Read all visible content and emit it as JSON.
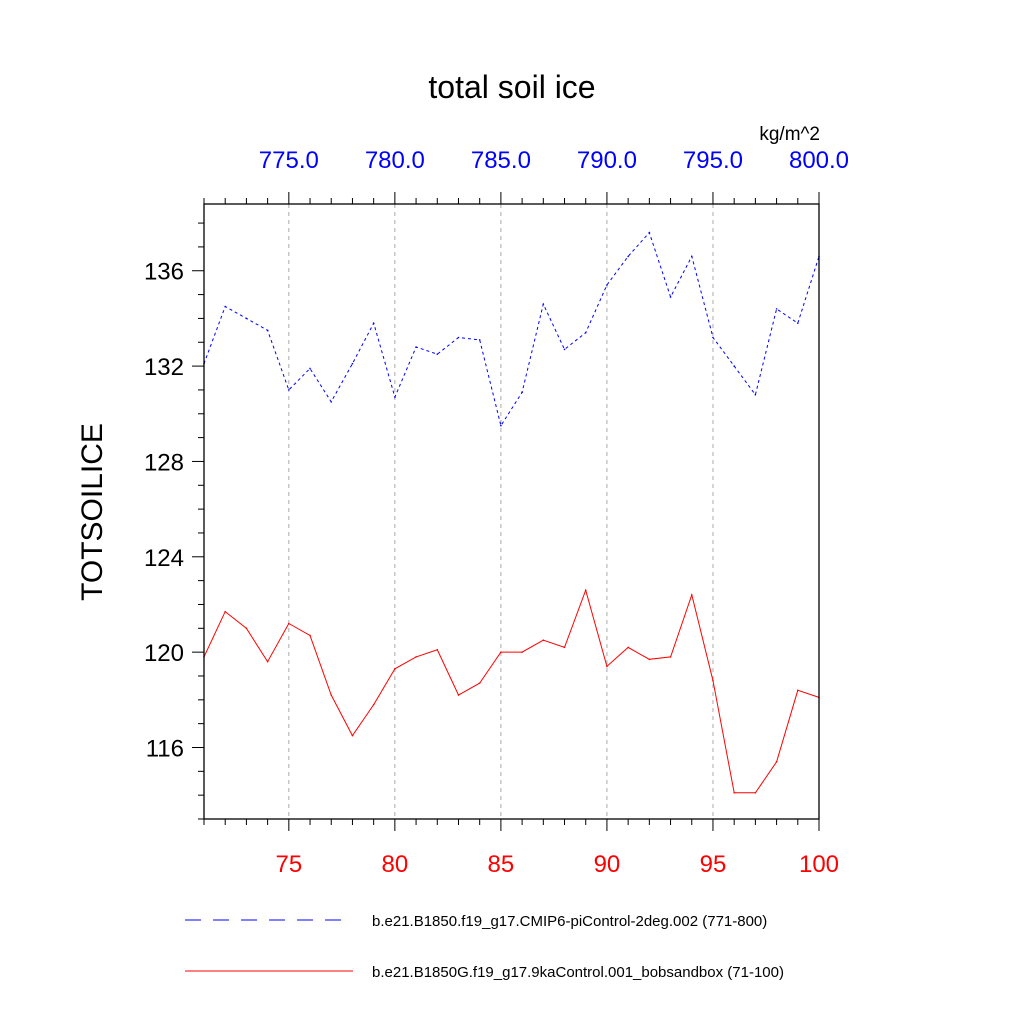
{
  "chart_data": {
    "type": "line",
    "title": "total soil ice",
    "ylabel": "TOTSOILICE",
    "top_axis_units": "kg/m^2",
    "ylim": [
      113,
      138.8
    ],
    "yticks": [
      116,
      120,
      124,
      128,
      132,
      136
    ],
    "y_minor_step": 1,
    "grid": "vertical-dashed",
    "legend_position": "bottom",
    "bottom_axis": {
      "color": "#ff0000",
      "range": [
        71,
        100
      ],
      "ticks": [
        75,
        80,
        85,
        90,
        95,
        100
      ],
      "tick_labels": [
        "75",
        "80",
        "85",
        "90",
        "95",
        "100"
      ]
    },
    "top_axis": {
      "color": "#0000ff",
      "range": [
        771,
        800
      ],
      "ticks": [
        775,
        780,
        785,
        790,
        795,
        800
      ],
      "tick_labels": [
        "775.0",
        "780.0",
        "785.0",
        "790.0",
        "795.0",
        "800.0"
      ]
    },
    "series": [
      {
        "name": "b.e21.B1850.f19_g17.CMIP6-piControl-2deg.002 (771-800)",
        "axis": "top",
        "color": "#0000ff",
        "dash": "dashed",
        "x": [
          771,
          772,
          773,
          774,
          775,
          776,
          777,
          778,
          779,
          780,
          781,
          782,
          783,
          784,
          785,
          786,
          787,
          788,
          789,
          790,
          791,
          792,
          793,
          794,
          795,
          796,
          797,
          798,
          799,
          800
        ],
        "values": [
          132.1,
          134.5,
          134.0,
          133.5,
          131.0,
          131.9,
          130.5,
          132.1,
          133.8,
          130.7,
          132.8,
          132.5,
          133.2,
          133.1,
          129.5,
          130.9,
          134.6,
          132.7,
          133.4,
          135.4,
          136.6,
          137.6,
          134.9,
          136.6,
          133.2,
          132.0,
          130.8,
          134.4,
          133.8,
          136.6
        ]
      },
      {
        "name": "b.e21.B1850G.f19_g17.9kaControl.001_bobsandbox (71-100)",
        "axis": "bottom",
        "color": "#ff0000",
        "dash": "solid",
        "x": [
          71,
          72,
          73,
          74,
          75,
          76,
          77,
          78,
          79,
          80,
          81,
          82,
          83,
          84,
          85,
          86,
          87,
          88,
          89,
          90,
          91,
          92,
          93,
          94,
          95,
          96,
          97,
          98,
          99,
          100
        ],
        "values": [
          119.8,
          121.7,
          121.0,
          119.6,
          121.2,
          120.7,
          118.2,
          116.5,
          117.8,
          119.3,
          119.8,
          120.1,
          118.2,
          118.7,
          120.0,
          120.0,
          120.5,
          120.2,
          122.6,
          119.4,
          120.2,
          119.7,
          119.8,
          122.4,
          118.8,
          114.1,
          114.1,
          115.4,
          118.4,
          118.1
        ]
      }
    ]
  }
}
